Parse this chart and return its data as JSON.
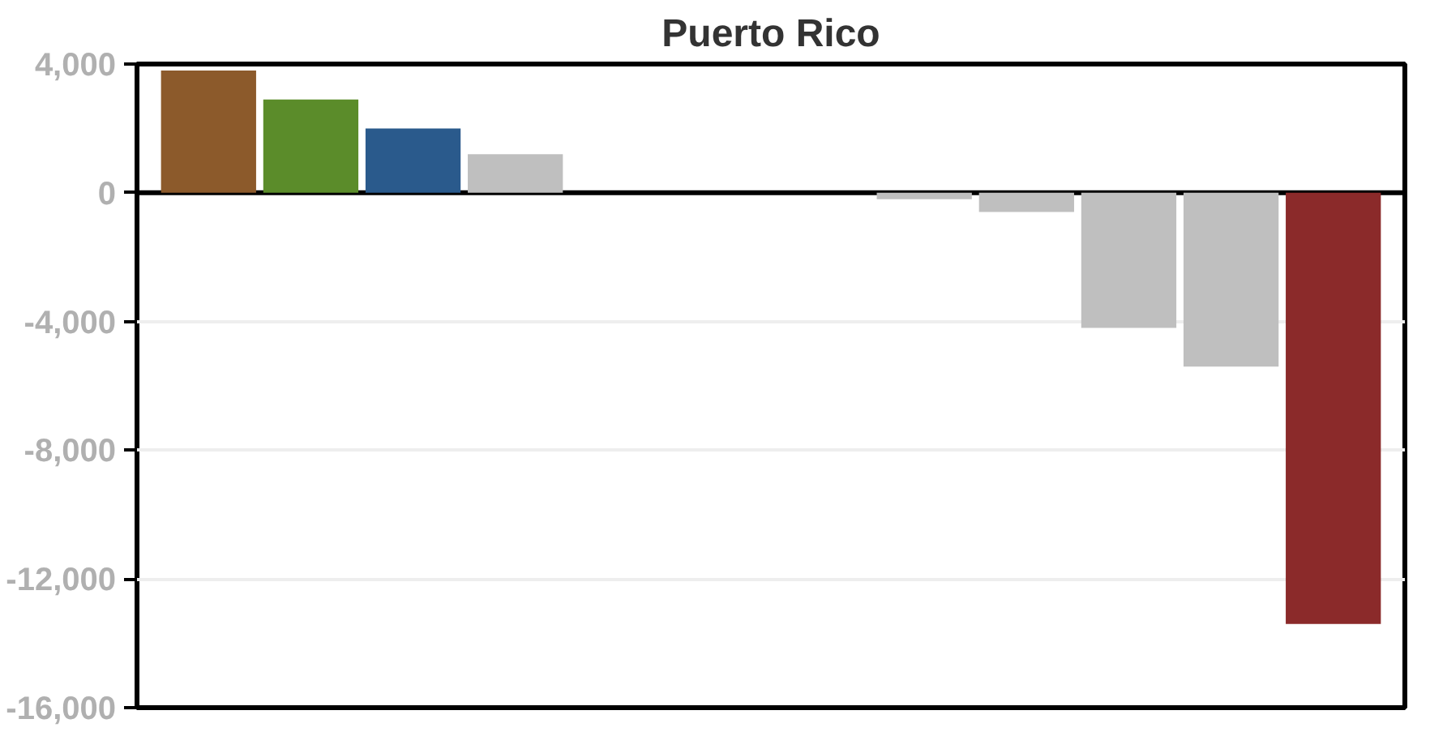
{
  "chart_data": {
    "type": "bar",
    "title": "Puerto Rico",
    "categories": [
      null,
      null,
      null,
      null,
      null,
      null,
      null,
      null,
      null,
      null,
      null,
      null
    ],
    "values": [
      3800,
      2900,
      2000,
      1200,
      0,
      0,
      0,
      -200,
      -600,
      -4200,
      -5400,
      -13400
    ],
    "colors": [
      "#8c5a2b",
      "#5b8c2a",
      "#2a5a8c",
      "#bfbfbf",
      "#bfbfbf",
      "#bfbfbf",
      "#bfbfbf",
      "#bfbfbf",
      "#bfbfbf",
      "#bfbfbf",
      "#bfbfbf",
      "#8b2a2a"
    ],
    "ylim": [
      -16000,
      4000
    ],
    "yticks": [
      {
        "value": -16000,
        "label": "-16,000"
      },
      {
        "value": -12000,
        "label": "-12,000"
      },
      {
        "value": -8000,
        "label": "-8,000"
      },
      {
        "value": -4000,
        "label": "-4,000"
      },
      0,
      {
        "value": 4000,
        "label": "4,000"
      }
    ],
    "grid": "y",
    "tick_labels": "y",
    "ref_lines": [
      {
        "axis": "y",
        "value": 0,
        "color": "#000000"
      }
    ]
  }
}
